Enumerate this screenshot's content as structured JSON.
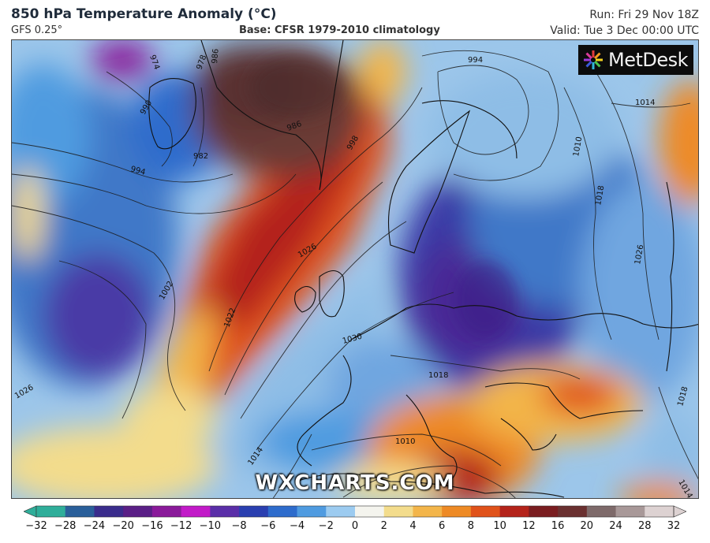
{
  "header": {
    "title": "850 hPa Temperature Anomaly (°C)",
    "model": "GFS 0.25°",
    "base": "Base: CFSR 1979-2010 climatology",
    "run": "Run: Fri 29 Nov 18Z",
    "valid": "Valid: Tue 3 Dec 00:00 UTC"
  },
  "branding": {
    "logo_text": "MetDesk",
    "watermark": "WXCHARTS.COM"
  },
  "map": {
    "region": "Europe and North Atlantic",
    "isobar_labels": [
      "994",
      "974",
      "978",
      "986",
      "990",
      "982",
      "994",
      "986",
      "998",
      "1002",
      "1022",
      "1026",
      "1030",
      "1018",
      "1010",
      "1014",
      "1026",
      "1014",
      "1010",
      "1018",
      "1026",
      "1018",
      "1014"
    ]
  },
  "colorbar": {
    "ticks": [
      "−32",
      "−28",
      "−24",
      "−20",
      "−16",
      "−12",
      "−10",
      "−8",
      "−6",
      "−4",
      "−2",
      "0",
      "2",
      "4",
      "6",
      "8",
      "10",
      "12",
      "16",
      "20",
      "24",
      "28",
      "32"
    ],
    "colors": [
      "#2fae9a",
      "#2a5f9a",
      "#3a2c8c",
      "#5a1f86",
      "#8a1a9a",
      "#c21ac8",
      "#5a2ea8",
      "#2a3fb0",
      "#2e6ccc",
      "#4f9be0",
      "#9ccbf0",
      "#f4f4ee",
      "#f3dc8c",
      "#f3b54a",
      "#ee8a25",
      "#e0521a",
      "#b4231a",
      "#7a1d20",
      "#6a3030",
      "#7e6a6a",
      "#a89898",
      "#ddd2d2"
    ]
  }
}
